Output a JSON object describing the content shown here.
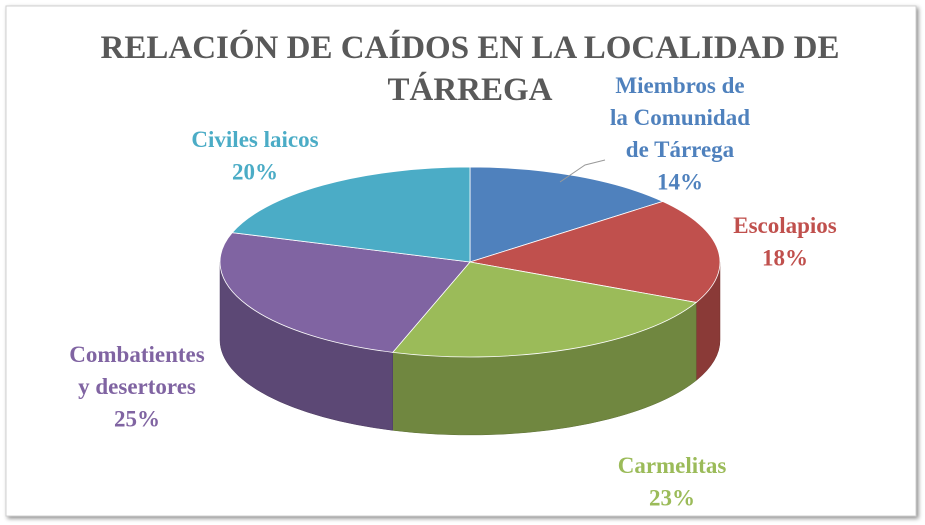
{
  "chart_data": {
    "type": "pie3d",
    "title": "RELACIÓN DE CAÍDOS EN LA LOCALIDAD DE TÁRREGA",
    "categories": [
      "Miembros de la Comunidad de Tárrega",
      "Escolapios",
      "Carmelitas",
      "Combatientes y desertores",
      "Civiles laicos"
    ],
    "values": [
      14,
      18,
      23,
      25,
      20
    ],
    "value_labels": [
      "14%",
      "18%",
      "23%",
      "25%",
      "20%"
    ],
    "colors": [
      "#4f81bd",
      "#c0504d",
      "#9bbb59",
      "#8064a2",
      "#4bacc6"
    ]
  }
}
